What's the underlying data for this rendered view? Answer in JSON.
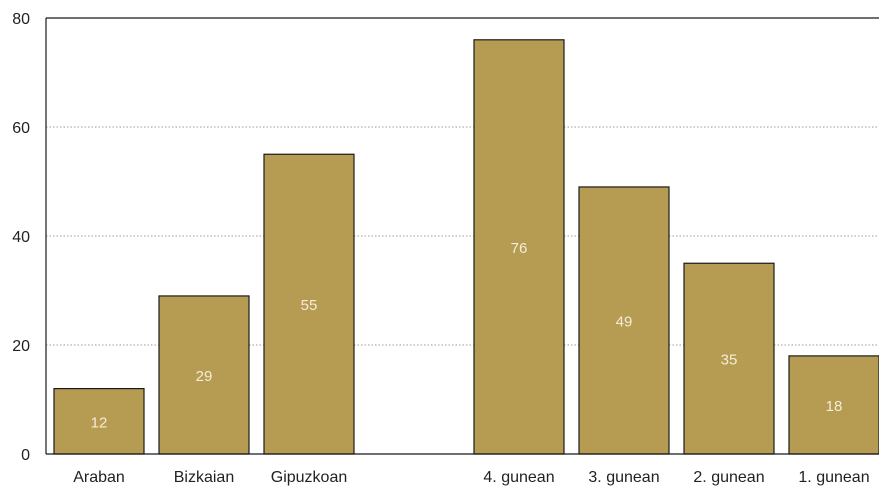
{
  "chart_data": {
    "type": "bar",
    "title": "",
    "xlabel": "",
    "ylabel": "",
    "ylim": [
      0,
      80
    ],
    "yticks": [
      0,
      20,
      40,
      60,
      80
    ],
    "grid": true,
    "bar_color": "#b69b52",
    "bar_edge_color": "#1a1a1a",
    "categories": [
      "Araban",
      "Bizkaian",
      "Gipuzkoan",
      "4. gunean",
      "3. gunean",
      "2. gunean",
      "1. gunean"
    ],
    "values": [
      12,
      29,
      55,
      76,
      49,
      35,
      18
    ]
  }
}
